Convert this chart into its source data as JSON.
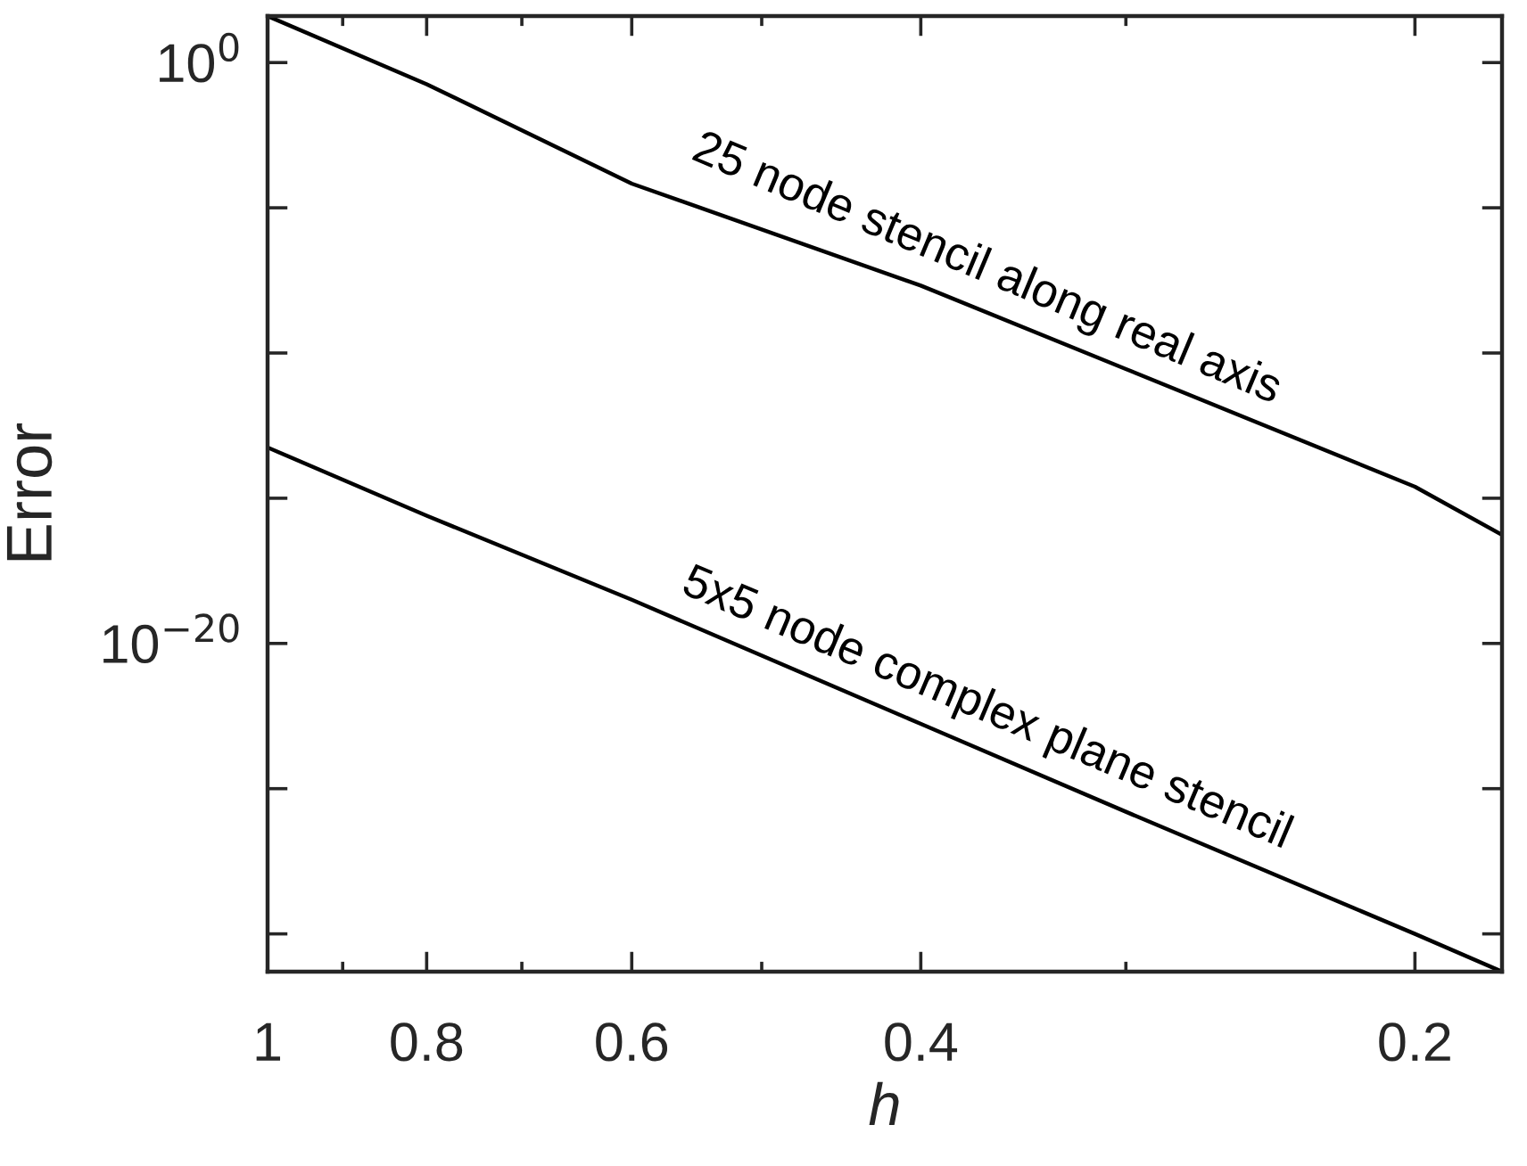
{
  "chart_data": {
    "type": "line",
    "xlabel": "h",
    "ylabel": "Error",
    "log": "xy",
    "grid": false,
    "legend": false,
    "marker": "none",
    "line_style": "solid",
    "xlim": [
      1,
      0.177
    ],
    "ylim": [
      5e-32,
      40
    ],
    "xticks": [
      1,
      {
        "value": 0.9,
        "label": null
      },
      0.8,
      {
        "value": 0.7,
        "label": null
      },
      0.6,
      {
        "value": 0.5,
        "label": null
      },
      0.4,
      {
        "value": 0.3,
        "label": null
      },
      0.2
    ],
    "yticks": [
      {
        "value": 1e-30,
        "label": null
      },
      {
        "value": 1e-25,
        "label": null
      },
      {
        "value": 1e-20,
        "label": "10$^{−20}$"
      },
      {
        "value": 1e-15,
        "label": null
      },
      {
        "value": 1e-10,
        "label": null
      },
      {
        "value": 1e-05,
        "label": null
      },
      {
        "value": 1,
        "label": "10$^{0}$"
      }
    ],
    "series": [
      {
        "color": "#000000",
        "x": [
          1,
          0.8,
          0.6,
          0.4,
          0.3,
          0.2,
          0.177
        ],
        "values": [
          40,
          0.18,
          6.8e-05,
          2.1e-08,
          2.8e-11,
          2.5e-15,
          5.5e-17
        ]
      },
      {
        "color": "#000000",
        "x": [
          1,
          0.8,
          0.6,
          0.4,
          0.3,
          0.2,
          0.177
        ],
        "values": [
          5.6e-14,
          2.5e-16,
          3.2e-19,
          1.7e-23,
          1.6e-26,
          1e-30,
          5e-32
        ]
      }
    ],
    "annotations": [
      "25 node stencil along real axis",
      "5x5 node complex plane stencil"
    ]
  }
}
